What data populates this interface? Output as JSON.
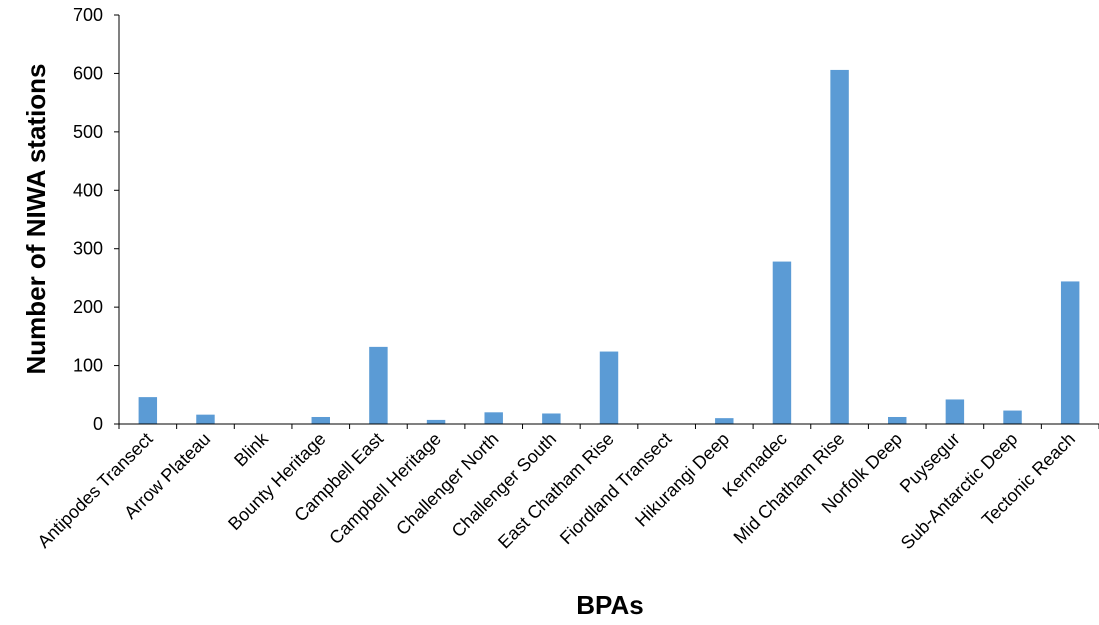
{
  "chart_data": {
    "type": "bar",
    "title": "",
    "xlabel": "BPAs",
    "ylabel": "Number of NIWA stations",
    "ylim": [
      0,
      700
    ],
    "yticks": [
      0,
      100,
      200,
      300,
      400,
      500,
      600,
      700
    ],
    "grid": false,
    "legend": "none",
    "bar_color": "#5b9bd5",
    "categories": [
      "Antipodes Transect",
      "Arrow Plateau",
      "Blink",
      "Bounty Heritage",
      "Campbell East",
      "Campbell Heritage",
      "Challenger North",
      "Challenger South",
      "East Chatham Rise",
      "Fiordland Transect",
      "Hikurangi Deep",
      "Kermadec",
      "Mid Chatham Rise",
      "Norfolk Deep",
      "Puysegur",
      "Sub-Antarctic Deep",
      "Tectonic Reach"
    ],
    "values": [
      46,
      16,
      0,
      12,
      132,
      7,
      20,
      18,
      124,
      0,
      10,
      278,
      606,
      12,
      42,
      23,
      244
    ]
  }
}
